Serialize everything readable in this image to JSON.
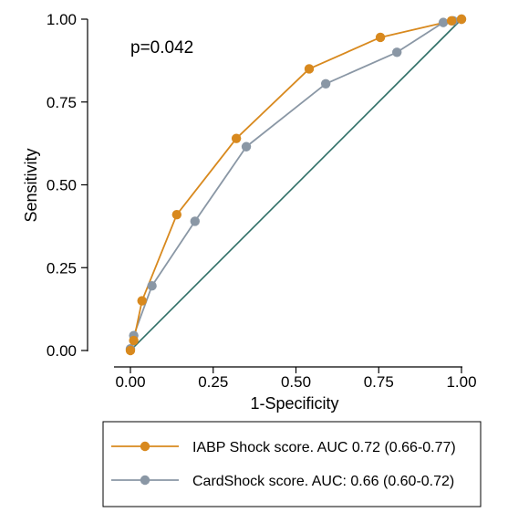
{
  "chart_data": {
    "type": "line",
    "xlabel": "1-Specificity",
    "ylabel": "Sensitivity",
    "xlim": [
      0,
      1
    ],
    "ylim": [
      0,
      1
    ],
    "x_ticks": [
      "0.00",
      "0.25",
      "0.50",
      "0.75",
      "1.00"
    ],
    "y_ticks": [
      "0.00",
      "0.25",
      "0.50",
      "0.75",
      "1.00"
    ],
    "annotation": "p=0.042",
    "grid": false,
    "legend_position": "bottom",
    "reference_line": {
      "x": [
        0,
        1
      ],
      "y": [
        0,
        1
      ],
      "color": "#2e6e66"
    },
    "series": [
      {
        "name": "IABP Shock score. AUC 0.72 (0.66-0.77)",
        "color": "#d8891e",
        "x": [
          0.0,
          0.01,
          0.035,
          0.14,
          0.32,
          0.54,
          0.755,
          0.97,
          1.0
        ],
        "y": [
          0.0,
          0.03,
          0.15,
          0.41,
          0.64,
          0.85,
          0.945,
          0.995,
          1.0
        ]
      },
      {
        "name": "CardShock score. AUC: 0.66 (0.60-0.72)",
        "color": "#8a97a5",
        "x": [
          0.0,
          0.01,
          0.065,
          0.195,
          0.35,
          0.59,
          0.805,
          0.945,
          0.975,
          1.0
        ],
        "y": [
          0.005,
          0.045,
          0.195,
          0.39,
          0.615,
          0.805,
          0.9,
          0.99,
          0.995,
          1.0
        ]
      }
    ]
  }
}
